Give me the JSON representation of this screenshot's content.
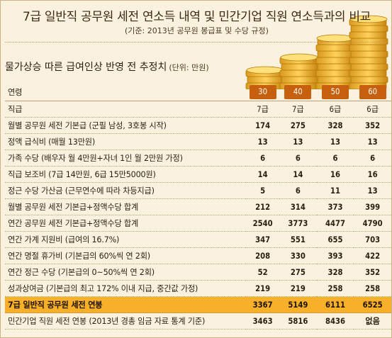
{
  "header": {
    "title": "7급 일반직 공무원 세전 연소득 내역 및 민간기업 직원 연소득과의 비교",
    "subtitle": "(기준: 2013년 공무원 봉급표 및 수당 규정)"
  },
  "section": {
    "heading": "물가상승 따른 급여인상 반영 전 추정치",
    "unit": "(단위: 만원)"
  },
  "table": {
    "columns": [
      "연령",
      "30",
      "40",
      "50",
      "60"
    ],
    "rows": [
      {
        "label": "직급",
        "values": [
          "7급",
          "7급",
          "6급",
          "6급"
        ]
      },
      {
        "label": "월별 공무원 세전 기본급 (군필 남성, 3호봉 시작)",
        "values": [
          "174",
          "275",
          "328",
          "352"
        ]
      },
      {
        "label": "정액 급식비 (매월 13만원)",
        "values": [
          "13",
          "13",
          "13",
          "13"
        ]
      },
      {
        "label": "가족 수당 (배우자 월 4만원+자녀 1인 월 2만원 가정)",
        "values": [
          "6",
          "6",
          "6",
          "6"
        ]
      },
      {
        "label": "직급 보조비 (7급 14만원, 6급 15만5000원)",
        "values": [
          "14",
          "14",
          "16",
          "16"
        ]
      },
      {
        "label": "정근 수당 가산금 (근무연수에 따라 차등지급)",
        "values": [
          "5",
          "6",
          "11",
          "13"
        ]
      },
      {
        "label": "월별 공무원 세전 기본급+정액수당 합계",
        "values": [
          "212",
          "314",
          "373",
          "399"
        ]
      },
      {
        "label": "연간 공무원 세전 기본급+정액수당 합계",
        "values": [
          "2540",
          "3773",
          "4477",
          "4790"
        ]
      },
      {
        "label": "연간 가계 지원비 (급여의 16.7%)",
        "values": [
          "347",
          "551",
          "655",
          "703"
        ]
      },
      {
        "label": "연간 명절 휴가비 (기본급의 60%씩 연 2회)",
        "values": [
          "208",
          "330",
          "393",
          "422"
        ]
      },
      {
        "label": "연간 정근 수당 (기본급의 0~50%씩 연 2회)",
        "values": [
          "52",
          "275",
          "328",
          "352"
        ]
      },
      {
        "label": "성과상여금 (기본급의 최고 172% 이내 지급, 중간값 가정)",
        "values": [
          "219",
          "219",
          "258",
          "258"
        ]
      },
      {
        "label": "7급 일반직 공무원 세전 연봉",
        "values": [
          "3367",
          "5149",
          "6111",
          "6525"
        ]
      },
      {
        "label": "민간기업 직원 세전 연봉 (2013년 경총 임금 자료 통계 기준)",
        "values": [
          "3463",
          "5816",
          "8436",
          "없음"
        ]
      }
    ]
  },
  "colors": {
    "background": "#faf2df",
    "age_badge": "#c6600d",
    "highlight": "#f7b028"
  },
  "icons": [
    "coin-stacks-illustration"
  ]
}
